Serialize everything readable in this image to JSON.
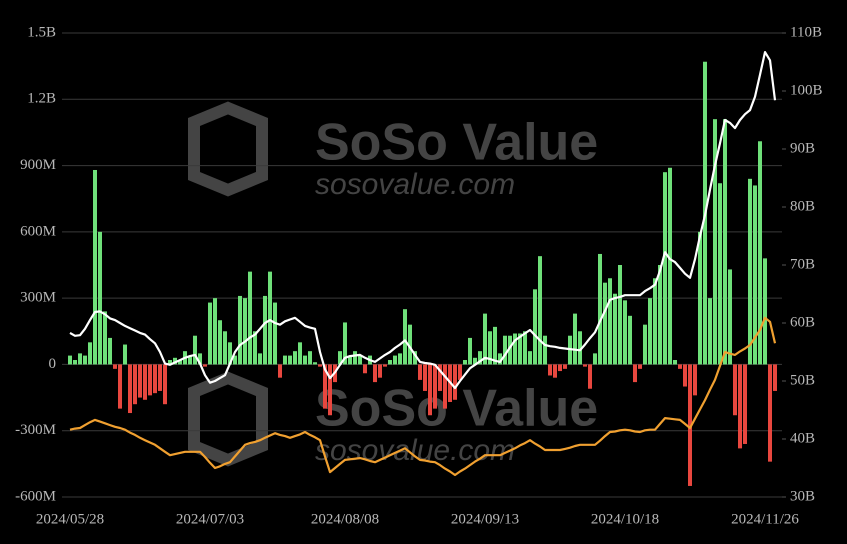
{
  "chart_data": {
    "type": "bar_line",
    "watermark": {
      "title": "SoSo Value",
      "subtitle": "sosovalue.com"
    },
    "categories": [
      "2024/05/28",
      null,
      null,
      null,
      null,
      null,
      null,
      null,
      null,
      null,
      null,
      null,
      null,
      null,
      null,
      null,
      null,
      null,
      null,
      null,
      null,
      null,
      null,
      null,
      null,
      null,
      null,
      null,
      "2024/07/03",
      null,
      null,
      null,
      null,
      null,
      null,
      null,
      null,
      null,
      null,
      null,
      null,
      null,
      null,
      null,
      null,
      null,
      null,
      null,
      null,
      null,
      null,
      null,
      null,
      null,
      null,
      "2024/08/08",
      null,
      null,
      null,
      null,
      null,
      null,
      null,
      null,
      null,
      null,
      null,
      null,
      null,
      null,
      null,
      null,
      null,
      null,
      null,
      null,
      null,
      null,
      null,
      null,
      null,
      null,
      null,
      "2024/09/13",
      null,
      null,
      null,
      null,
      null,
      null,
      null,
      null,
      null,
      null,
      null,
      null,
      null,
      null,
      null,
      null,
      null,
      null,
      null,
      null,
      null,
      null,
      null,
      null,
      null,
      null,
      null,
      "2024/10/18",
      null,
      null,
      null,
      null,
      null,
      null,
      null,
      null,
      null,
      null,
      null,
      null,
      null,
      null,
      null,
      null,
      null,
      null,
      null,
      null,
      null,
      null,
      null,
      null,
      null,
      null,
      null,
      "2024/11/26",
      null,
      null
    ],
    "series": [
      {
        "type": "bar",
        "axis": "y",
        "color": "#6fe07a",
        "negative_color": "#e8473f",
        "values": [
          40,
          20,
          50,
          40,
          100,
          880,
          600,
          240,
          120,
          -20,
          -200,
          90,
          -220,
          -180,
          -150,
          -160,
          -140,
          -130,
          -120,
          -180,
          20,
          30,
          20,
          60,
          40,
          130,
          50,
          -10,
          280,
          300,
          200,
          150,
          100,
          40,
          310,
          300,
          420,
          150,
          50,
          310,
          420,
          280,
          -60,
          40,
          40,
          60,
          100,
          40,
          60,
          10,
          -10,
          -200,
          -230,
          -80,
          60,
          190,
          40,
          60,
          40,
          -40,
          40,
          -80,
          -60,
          -10,
          20,
          40,
          50,
          250,
          180,
          60,
          -70,
          -120,
          -230,
          -200,
          -120,
          -200,
          -170,
          -160,
          -70,
          20,
          120,
          30,
          60,
          230,
          150,
          170,
          50,
          130,
          130,
          140,
          140,
          150,
          60,
          340,
          490,
          130,
          -50,
          -60,
          -30,
          -20,
          130,
          230,
          150,
          -10,
          -110,
          50,
          500,
          370,
          390,
          320,
          450,
          290,
          220,
          -80,
          -20,
          180,
          300,
          390,
          450,
          870,
          890,
          20,
          -20,
          -100,
          -550,
          -140,
          600,
          1370,
          300,
          1110,
          820,
          1110,
          430,
          -230,
          -380,
          -360,
          840,
          810,
          1010,
          480,
          -440,
          -120
        ]
      },
      {
        "type": "line",
        "axis": "y2",
        "color": "#ffffff",
        "values": [
          58.3,
          57.8,
          57.9,
          59,
          60.5,
          61.9,
          62,
          61.5,
          60.8,
          60.5,
          60,
          59.5,
          59.1,
          58.7,
          58.3,
          58,
          57.2,
          56.5,
          55,
          53,
          52.8,
          53.2,
          53.6,
          54,
          54.3,
          54.5,
          53,
          51,
          49.7,
          50,
          50.5,
          51,
          53,
          55,
          56.2,
          56.8,
          57.5,
          58,
          59,
          60,
          60.5,
          60,
          59.7,
          60.3,
          60.6,
          60.9,
          60.2,
          59.5,
          59.2,
          59,
          55,
          52,
          50.5,
          51.5,
          52.8,
          54,
          54.3,
          54.4,
          54.5,
          54,
          53.6,
          53.3,
          53.9,
          54.5,
          55,
          55.7,
          56.3,
          57,
          55.8,
          54.5,
          53.3,
          53.1,
          53,
          52.8,
          51.8,
          50.8,
          49.8,
          48.8,
          50,
          51.1,
          52.2,
          52.8,
          53.4,
          54,
          53.8,
          53.5,
          53.3,
          54.5,
          55.8,
          57,
          57.6,
          58.2,
          58.8,
          57.9,
          57,
          56.2,
          56,
          55.9,
          55.7,
          55.6,
          55.5,
          55.4,
          55.3,
          56.3,
          57.4,
          58.4,
          60.3,
          62.1,
          64,
          64.3,
          64.5,
          64.8,
          64.8,
          64.8,
          64.8,
          65.5,
          66,
          66.6,
          69,
          72.2,
          71,
          70.5,
          69.5,
          68.5,
          67.8,
          71,
          75,
          78.6,
          83,
          87.2,
          91,
          95,
          94.5,
          93.6,
          95,
          96,
          96.7,
          99,
          102.8,
          106.7,
          105.3,
          98.4
        ]
      },
      {
        "type": "line",
        "axis": "y2",
        "color": "#f0a030",
        "values": [
          41.6,
          41.8,
          41.9,
          42.4,
          42.9,
          43.3,
          43,
          42.7,
          42.4,
          42.1,
          41.9,
          41.6,
          41.1,
          40.7,
          40.2,
          39.8,
          39.4,
          39,
          38.4,
          37.8,
          37.2,
          37.4,
          37.6,
          37.8,
          37.8,
          37.8,
          37.8,
          36.9,
          35.9,
          35,
          35.3,
          35.7,
          36,
          37,
          38,
          39,
          39.3,
          39.5,
          39.8,
          40.2,
          40.6,
          41,
          40.7,
          40.5,
          40.2,
          40.5,
          40.8,
          41.2,
          40.7,
          40.3,
          39.8,
          37,
          34.3,
          35,
          35.7,
          36.4,
          36.5,
          36.6,
          36.7,
          36.5,
          36.2,
          36,
          36.4,
          36.8,
          37.2,
          37.6,
          38,
          38.4,
          37.7,
          37,
          36.4,
          36.3,
          36.1,
          36,
          35.5,
          34.9,
          34.4,
          33.8,
          34.4,
          34.9,
          35.5,
          36.1,
          36.6,
          37.2,
          37.2,
          37.2,
          37.2,
          37.6,
          38,
          38.4,
          38.9,
          39.3,
          39.8,
          39.2,
          38.7,
          38.1,
          38.1,
          38.1,
          38.1,
          38.3,
          38.5,
          38.8,
          39,
          39,
          39,
          39,
          39.7,
          40.5,
          41.2,
          41.3,
          41.5,
          41.6,
          41.5,
          41.3,
          41.2,
          41.5,
          41.6,
          41.6,
          42.6,
          43.6,
          43.5,
          43.4,
          43.3,
          42.6,
          41.9,
          43.5,
          45.1,
          46.7,
          48.5,
          50.2,
          52.6,
          55,
          54.7,
          54.5,
          55.1,
          55.6,
          56.2,
          57.5,
          58.8,
          60.9,
          60.2,
          56.5
        ]
      }
    ],
    "ylim": [
      -600,
      1500
    ],
    "yticks": [
      {
        "value": -600,
        "label": "-600M"
      },
      {
        "value": -300,
        "label": "-300M"
      },
      0,
      {
        "value": 300,
        "label": "300M"
      },
      {
        "value": 600,
        "label": "600M"
      },
      {
        "value": 900,
        "label": "900M"
      },
      {
        "value": 1200,
        "label": "1.2B"
      },
      {
        "value": 1500,
        "label": "1.5B"
      }
    ],
    "y2lim": [
      30,
      110
    ],
    "y2ticks": [
      {
        "value": 30,
        "label": "30B"
      },
      {
        "value": 40,
        "label": "40B"
      },
      {
        "value": 50,
        "label": "50B"
      },
      {
        "value": 60,
        "label": "60B"
      },
      {
        "value": 70,
        "label": "70B"
      },
      {
        "value": 80,
        "label": "80B"
      },
      {
        "value": 90,
        "label": "90B"
      },
      {
        "value": 100,
        "label": "100B"
      },
      {
        "value": 110,
        "label": "110B"
      }
    ],
    "grid": true
  }
}
